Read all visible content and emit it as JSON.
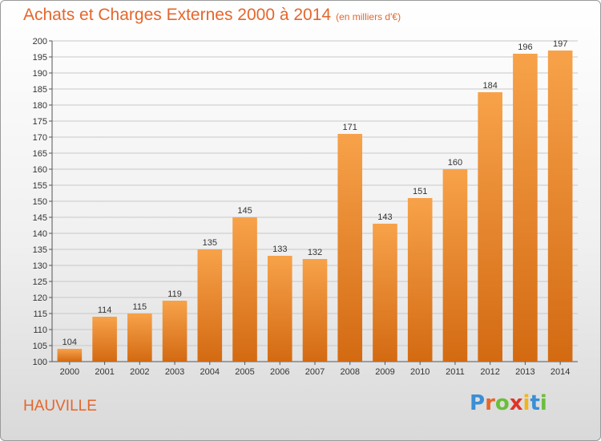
{
  "header": {
    "title": "Achats et Charges Externes 2000 à 2014",
    "unit": "(en milliers d'€)"
  },
  "footer": {
    "commune": "HAUVILLE",
    "logo_text": "Proxiti"
  },
  "colors": {
    "accent": "#e5662c",
    "bar_top": "#f7a24a",
    "bar_bottom": "#d36a12"
  },
  "chart_data": {
    "type": "bar",
    "title": "Achats et Charges Externes 2000 à 2014",
    "subtitle": "(en milliers d'€)",
    "categories": [
      "2000",
      "2001",
      "2002",
      "2003",
      "2004",
      "2005",
      "2006",
      "2007",
      "2008",
      "2009",
      "2010",
      "2011",
      "2012",
      "2013",
      "2014"
    ],
    "values": [
      104,
      114,
      115,
      119,
      135,
      145,
      133,
      132,
      171,
      143,
      151,
      160,
      184,
      196,
      197
    ],
    "ylim": [
      100,
      200
    ],
    "yticks": [
      100,
      105,
      110,
      115,
      120,
      125,
      130,
      135,
      140,
      145,
      150,
      155,
      160,
      165,
      170,
      175,
      180,
      185,
      190,
      195,
      200
    ],
    "grid": true,
    "xlabel": "",
    "ylabel": ""
  }
}
